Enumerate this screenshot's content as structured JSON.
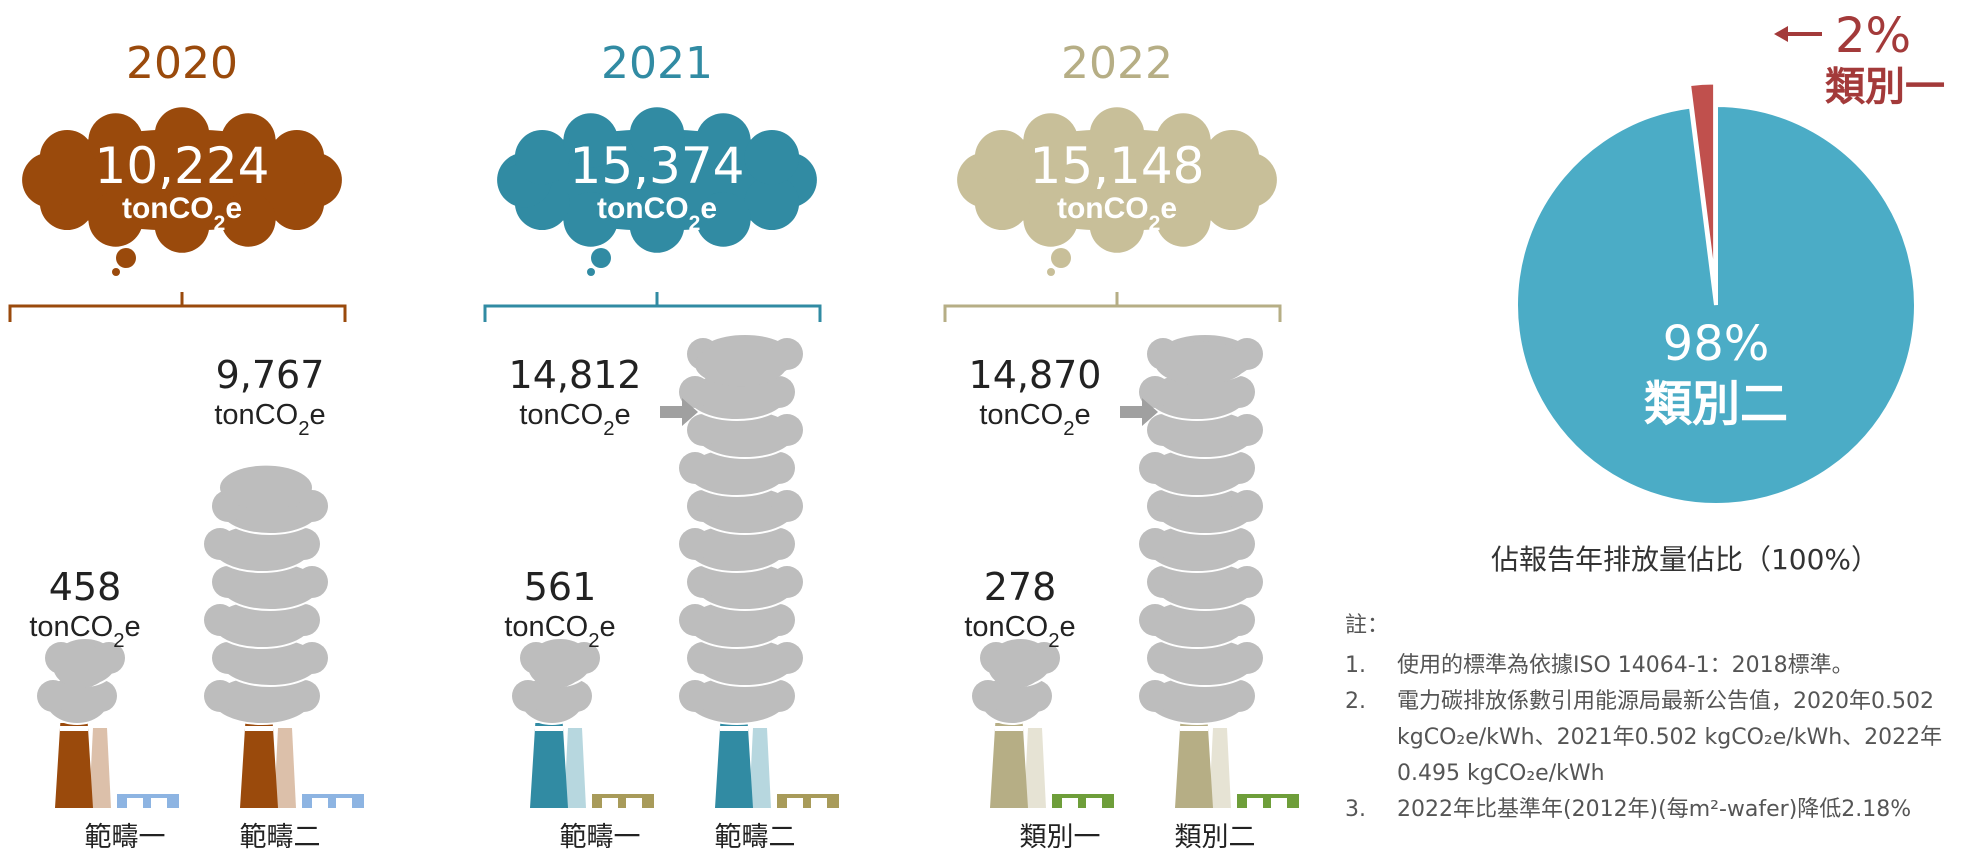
{
  "colors": {
    "y2020": "#9A4A0C",
    "y2021": "#318BA3",
    "y2022": "#B6AE85",
    "cloud2022": "#C8BF99",
    "smoke": "#BDBDBD",
    "arrow": "#A0A0A0",
    "pie_main": "#4BACC6",
    "pie_slice": "#C0504D",
    "pie_label_red": "#A33A3A"
  },
  "chart_data": [
    {
      "type": "bar",
      "unit": "tonCO2e",
      "series": [
        {
          "year": "2020",
          "total": "10,224",
          "categories": [
            "範疇一",
            "範疇二"
          ],
          "values": [
            458,
            9767
          ],
          "labels": [
            "458",
            "9,767"
          ]
        },
        {
          "year": "2021",
          "total": "15,374",
          "categories": [
            "範疇一",
            "範疇二"
          ],
          "values": [
            561,
            14812
          ],
          "labels": [
            "561",
            "14,812"
          ]
        },
        {
          "year": "2022",
          "total": "15,148",
          "categories": [
            "類別一",
            "類別二"
          ],
          "values": [
            278,
            14870
          ],
          "labels": [
            "278",
            "14,870"
          ]
        }
      ]
    },
    {
      "type": "pie",
      "labels": [
        "類別一",
        "類別二"
      ],
      "values": [
        2,
        98
      ],
      "value_labels": [
        "2%",
        "98%"
      ],
      "caption": "佔報告年排放量佔比（100%）"
    }
  ],
  "unit_parts": {
    "pre": "tonCO",
    "sub": "2",
    "post": "e"
  },
  "notes": {
    "title": "註：",
    "items": [
      {
        "n": "1.",
        "text": "使用的標準為依據ISO 14064-1：2018標準。"
      },
      {
        "n": "2.",
        "text": "電力碳排放係數引用能源局最新公告值，2020年0.502"
      },
      {
        "n": "",
        "text": "kgCO₂e/kWh、2021年0.502  kgCO₂e/kWh、2022年"
      },
      {
        "n": "",
        "text": "0.495 kgCO₂e/kWh"
      },
      {
        "n": "3.",
        "text": "2022年比基準年(2012年)(每m²-wafer)降低2.18%"
      }
    ]
  }
}
